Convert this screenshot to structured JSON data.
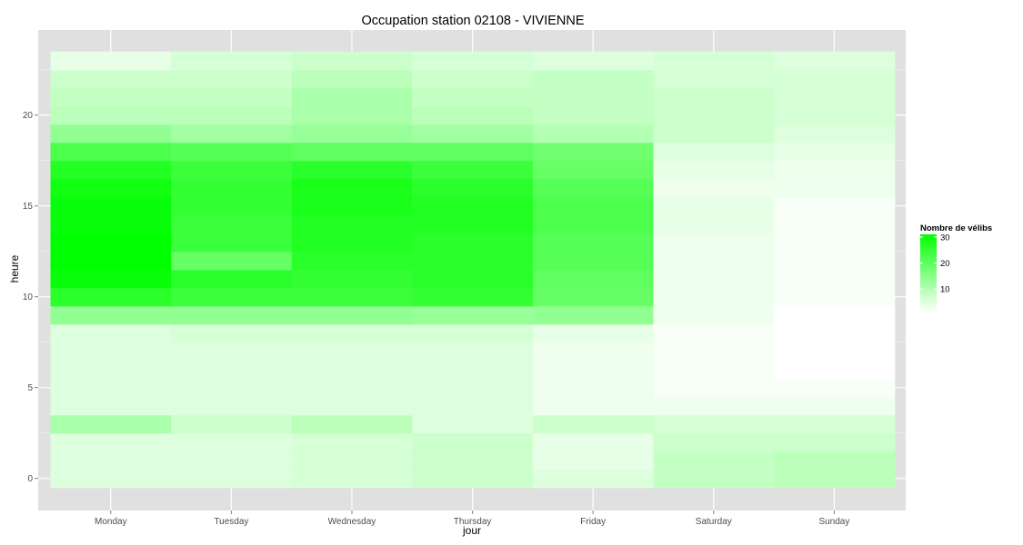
{
  "chart_data": {
    "type": "heatmap",
    "title": "Occupation station 02108 - VIVIENNE",
    "xlabel": "jour",
    "ylabel": "heure",
    "x_categories": [
      "Monday",
      "Tuesday",
      "Wednesday",
      "Thursday",
      "Friday",
      "Saturday",
      "Sunday"
    ],
    "y_values": [
      0,
      1,
      2,
      3,
      4,
      5,
      6,
      7,
      8,
      9,
      10,
      11,
      12,
      13,
      14,
      15,
      16,
      17,
      18,
      19,
      20,
      21,
      22,
      23
    ],
    "y_ticks": [
      0,
      5,
      10,
      15,
      20
    ],
    "y_range": [
      -0.5,
      23.5
    ],
    "values_by_day": {
      "Monday": [
        5,
        5,
        5,
        11,
        5,
        5,
        5,
        5,
        5,
        14,
        26,
        30,
        31,
        31,
        30,
        30,
        29,
        27,
        22,
        14,
        9,
        8,
        7,
        4
      ],
      "Tuesday": [
        5,
        5,
        5,
        7,
        5,
        5,
        5,
        5,
        6,
        14,
        24,
        26,
        19,
        24,
        24,
        25,
        25,
        24,
        21,
        12,
        9,
        8,
        7,
        6
      ],
      "Wednesday": [
        6,
        6,
        6,
        9,
        5,
        5,
        5,
        5,
        6,
        14,
        24,
        25,
        26,
        27,
        27,
        28,
        28,
        26,
        20,
        13,
        11,
        11,
        9,
        7
      ],
      "Thursday": [
        7,
        7,
        7,
        5,
        5,
        5,
        5,
        5,
        6,
        13,
        25,
        26,
        26,
        26,
        27,
        27,
        26,
        24,
        20,
        12,
        9,
        8,
        7,
        6
      ],
      "Friday": [
        5,
        4,
        4,
        7,
        3,
        3,
        3,
        3,
        4,
        14,
        19,
        20,
        21,
        21,
        22,
        22,
        21,
        19,
        18,
        10,
        8,
        8,
        8,
        5
      ],
      "Saturday": [
        8,
        8,
        7,
        6,
        3,
        2,
        2,
        2,
        2,
        3,
        3,
        3,
        3,
        3,
        4,
        4,
        3,
        4,
        5,
        7,
        7,
        7,
        6,
        6
      ],
      "Sunday": [
        9,
        9,
        7,
        6,
        3,
        2,
        1,
        1,
        1,
        1,
        2,
        2,
        2,
        2,
        2,
        2,
        3,
        3,
        4,
        5,
        6,
        6,
        6,
        5
      ]
    },
    "legend": {
      "title": "Nombre de vélibs",
      "ticks": [
        10,
        20,
        30
      ],
      "range": [
        1,
        31
      ],
      "color_low": "#ffffff",
      "color_high": "#00ff00"
    },
    "panel_background": "#e0e0e0",
    "grid_color": "#ffffff",
    "grid": true
  }
}
